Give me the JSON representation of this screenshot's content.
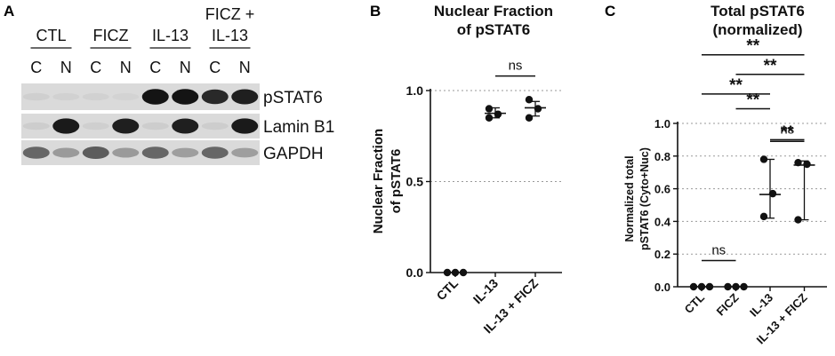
{
  "figure": {
    "panel_labels": [
      "A",
      "B",
      "C"
    ]
  },
  "blot": {
    "groups": [
      "CTL",
      "FICZ",
      "IL-13",
      "FICZ +\nIL-13"
    ],
    "group_lines": [
      [
        "CTL"
      ],
      [
        "FICZ"
      ],
      [
        "IL-13"
      ],
      [
        "FICZ +",
        "IL-13"
      ]
    ],
    "fractions": [
      "C",
      "N",
      "C",
      "N",
      "C",
      "N",
      "C",
      "N"
    ],
    "rows": [
      {
        "label": "pSTAT6",
        "intensity": [
          0.04,
          0.03,
          0.03,
          0.02,
          0.95,
          0.95,
          0.85,
          0.9
        ]
      },
      {
        "label": "Lamin B1",
        "intensity": [
          0.05,
          0.92,
          0.04,
          0.9,
          0.05,
          0.9,
          0.05,
          0.92
        ]
      },
      {
        "label": "GAPDH",
        "intensity": [
          0.55,
          0.3,
          0.6,
          0.3,
          0.55,
          0.28,
          0.55,
          0.28
        ]
      }
    ]
  },
  "chart_data": [
    {
      "type": "scatter",
      "title": "Nuclear Fraction\nof pSTAT6",
      "title_lines": [
        "Nuclear Fraction",
        "of pSTAT6"
      ],
      "ylabel": "Nuclear Fraction\nof pSTAT6",
      "ylabel_lines": [
        "Nuclear Fraction",
        "of pSTAT6"
      ],
      "categories": [
        "CTL",
        "IL-13",
        "IL-13 + FICZ"
      ],
      "ylim": [
        0,
        1.0
      ],
      "yticks": [
        0.0,
        0.5,
        1.0
      ],
      "ytick_labels": [
        "0.0",
        "0.5",
        "1.0"
      ],
      "grid": true,
      "points": [
        [
          0.0,
          0.0,
          0.0
        ],
        [
          0.9,
          0.87,
          0.85
        ],
        [
          0.95,
          0.9,
          0.85
        ]
      ],
      "center": [
        0.0,
        0.875,
        0.905
      ],
      "error": [
        [
          0.0,
          0.0
        ],
        [
          0.85,
          0.905
        ],
        [
          0.86,
          0.94
        ]
      ],
      "annotations": [
        {
          "text": "ns",
          "from": 1,
          "to": 2,
          "y": 1.08
        }
      ]
    },
    {
      "type": "scatter",
      "title": "Total pSTAT6\n(normalized)",
      "title_lines": [
        "Total pSTAT6",
        "(normalized)"
      ],
      "ylabel": "Normalized total\npSTAT6 (Cyto+Nuc)",
      "ylabel_lines": [
        "Normalized total",
        "pSTAT6 (Cyto+Nuc)"
      ],
      "categories": [
        "CTL",
        "FICZ",
        "IL-13",
        "IL-13 + FICZ"
      ],
      "ylim": [
        0,
        1.0
      ],
      "yticks": [
        0.0,
        0.2,
        0.4,
        0.6,
        0.8,
        1.0
      ],
      "ytick_labels": [
        "0.0",
        "0.2",
        "0.4",
        "0.6",
        "0.8",
        "1.0"
      ],
      "grid": true,
      "points": [
        [
          0.0,
          0.0,
          0.0
        ],
        [
          0.0,
          0.0,
          0.0
        ],
        [
          0.78,
          0.57,
          0.43
        ],
        [
          0.76,
          0.75,
          0.41
        ]
      ],
      "center": [
        0.0,
        0.0,
        0.565,
        0.745
      ],
      "error": [
        [
          0.0,
          0.0
        ],
        [
          0.0,
          0.0
        ],
        [
          0.42,
          0.78
        ],
        [
          0.41,
          0.77
        ]
      ],
      "annotations": [
        {
          "text": "ns",
          "from": 0,
          "to": 1,
          "y": 0.16
        },
        {
          "text": "**",
          "from": 2,
          "to": 3,
          "y": 0.89
        },
        {
          "text": "ns",
          "from": 2,
          "to": 3,
          "y": 0.9
        },
        {
          "text": "**",
          "from": 1,
          "to": 2,
          "y": 1.09
        },
        {
          "text": "**",
          "from": 0,
          "to": 2,
          "y": 1.18
        },
        {
          "text": "**",
          "from": 1,
          "to": 3,
          "y": 1.3
        },
        {
          "text": "**",
          "from": 0,
          "to": 3,
          "y": 1.42
        }
      ]
    }
  ]
}
